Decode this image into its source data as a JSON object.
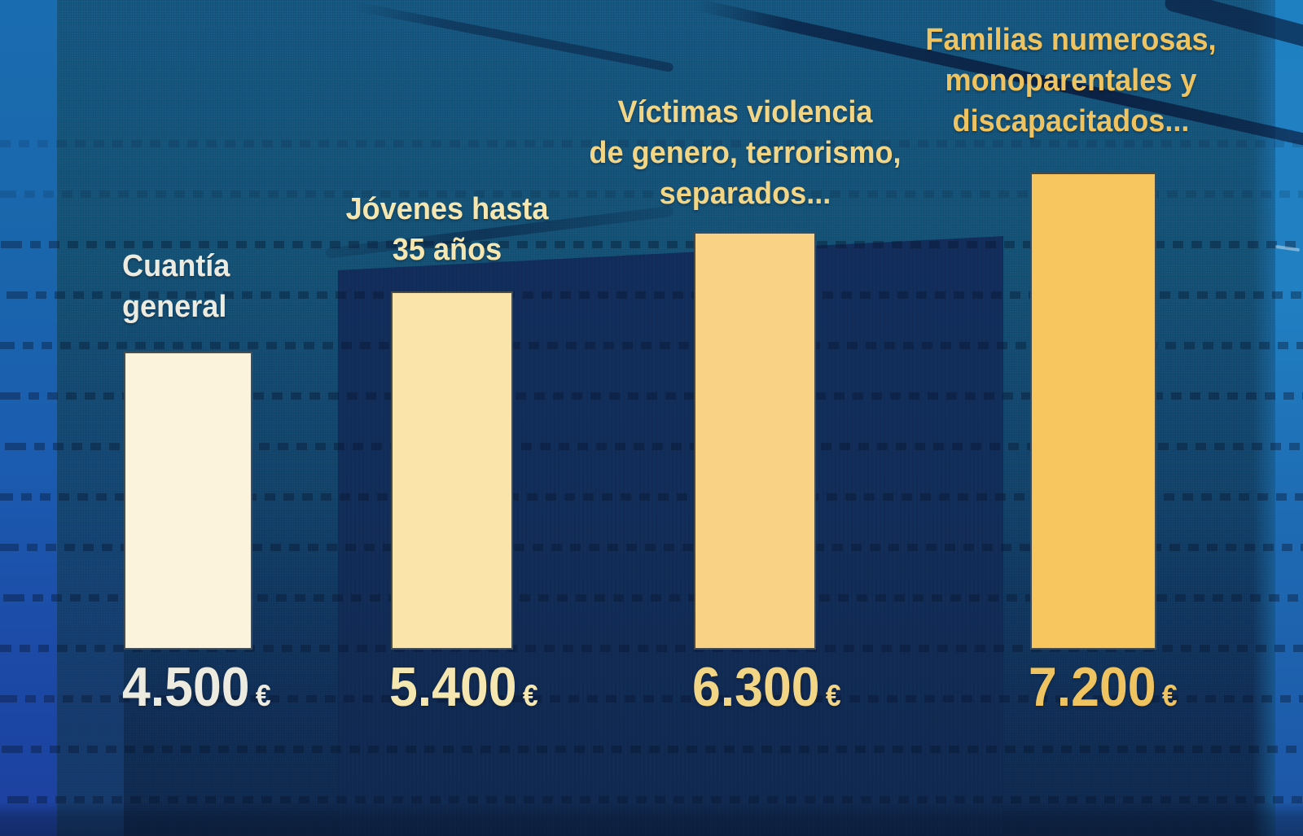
{
  "chart_data": {
    "type": "bar",
    "title": "",
    "xlabel": "",
    "ylabel": "",
    "ylim": [
      0,
      7200
    ],
    "grid": false,
    "legend": false,
    "currency_symbol": "€",
    "categories": [
      "Cuantía general",
      "Jóvenes hasta 35 años",
      "Víctimas violencia de genero, terrorismo, separados...",
      "Familias numerosas, monoparentales y discapacitados..."
    ],
    "values": [
      4500,
      5400,
      6300,
      7200
    ],
    "bars": [
      {
        "label_lines": [
          "Cuantía",
          "general"
        ],
        "value": 4500,
        "value_label": "4.500",
        "currency": "€",
        "bar_color": "#FCF3DC",
        "label_color": "#EDEADF"
      },
      {
        "label_lines": [
          "Jóvenes hasta",
          "35 años"
        ],
        "value": 5400,
        "value_label": "5.400",
        "currency": "€",
        "bar_color": "#FBE4AA",
        "label_color": "#F6E7B0"
      },
      {
        "label_lines": [
          "Víctimas violencia",
          "de genero, terrorismo,",
          "separados..."
        ],
        "value": 6300,
        "value_label": "6.300",
        "currency": "€",
        "bar_color": "#FAD286",
        "label_color": "#F3D586"
      },
      {
        "label_lines": [
          "Familias numerosas,",
          "monoparentales y",
          "discapacitados..."
        ],
        "value": 7200,
        "value_label": "7.200",
        "currency": "€",
        "bar_color": "#F8C65F",
        "label_color": "#EFC35F"
      }
    ]
  },
  "background_palette": {
    "teal_top": "#175A84",
    "navy_panel": "#122E5A",
    "bright_blue_left_strip": "#1A66AC",
    "bright_blue_right_strip": "#2180C2",
    "dash_row": "#06142E"
  }
}
